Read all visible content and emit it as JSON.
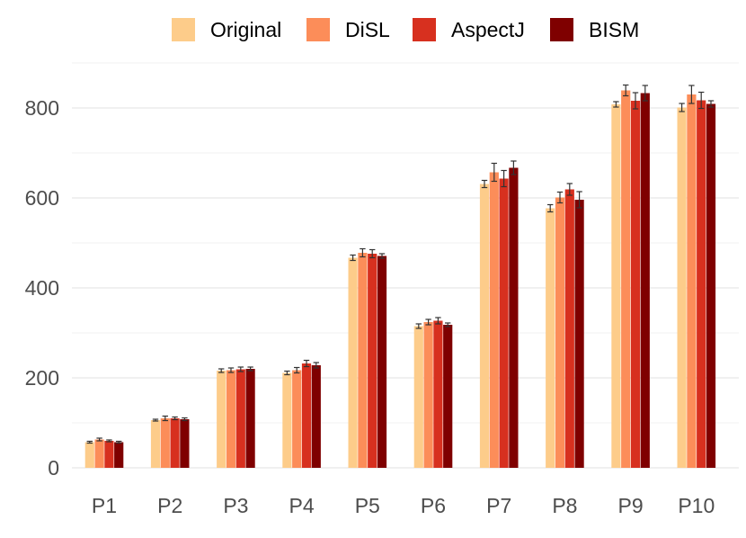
{
  "chart_data": {
    "type": "bar",
    "title": "",
    "xlabel": "",
    "ylabel": "",
    "categories": [
      "P1",
      "P2",
      "P3",
      "P4",
      "P5",
      "P6",
      "P7",
      "P8",
      "P9",
      "P10"
    ],
    "ylim": [
      0,
      900
    ],
    "y_ticks": [
      0,
      200,
      400,
      600,
      800
    ],
    "grid": true,
    "legend_position": "top",
    "series": [
      {
        "name": "Original",
        "color": "#FDCC8A",
        "values": [
          57,
          106,
          216,
          211,
          467,
          315,
          631,
          577,
          808,
          801
        ],
        "errors": [
          2,
          2,
          4,
          4,
          6,
          5,
          8,
          8,
          6,
          9
        ]
      },
      {
        "name": "DiSL",
        "color": "#FC8D59",
        "values": [
          63,
          110,
          217,
          217,
          478,
          324,
          657,
          601,
          839,
          830
        ],
        "errors": [
          3,
          5,
          5,
          6,
          9,
          6,
          20,
          12,
          12,
          20
        ]
      },
      {
        "name": "AspectJ",
        "color": "#D7301F",
        "values": [
          60,
          110,
          219,
          232,
          476,
          327,
          643,
          619,
          816,
          817
        ],
        "errors": [
          2,
          3,
          5,
          7,
          9,
          7,
          18,
          13,
          18,
          18
        ]
      },
      {
        "name": "BISM",
        "color": "#7F0000",
        "values": [
          57,
          108,
          220,
          228,
          471,
          318,
          667,
          596,
          833,
          809
        ],
        "errors": [
          2,
          3,
          4,
          6,
          5,
          4,
          15,
          18,
          17,
          7
        ]
      }
    ]
  }
}
